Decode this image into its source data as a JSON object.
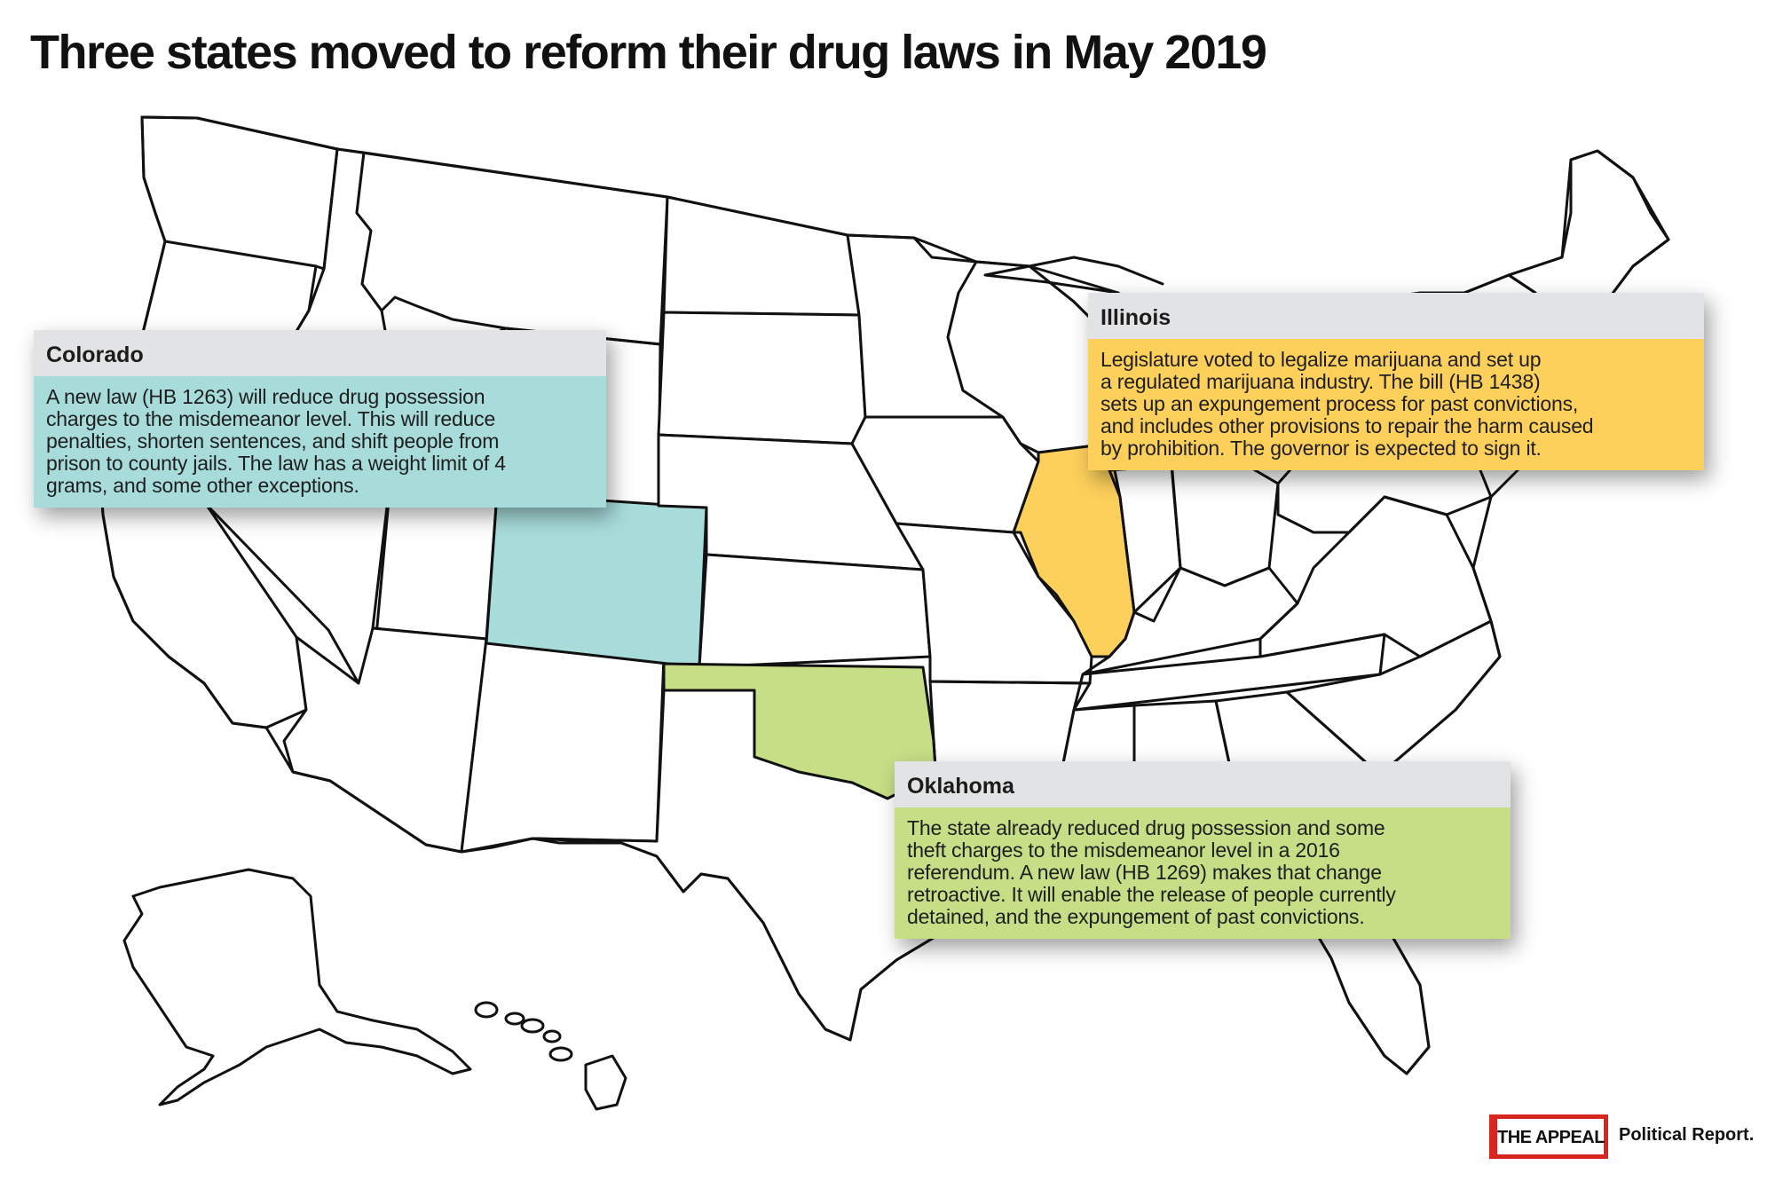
{
  "title": "Three states moved to reform their drug laws in May 2019",
  "colors": {
    "colorado": "#a8dcdb",
    "illinois": "#fdd05c",
    "oklahoma": "#c6df86",
    "state_default": "#ffffff",
    "border": "#111111",
    "card_header": "#e2e3e5",
    "logo_red": "#d7251f"
  },
  "highlighted_states": [
    {
      "name": "Colorado",
      "description_lines": [
        "A new law (HB 1263) will reduce drug possession",
        "charges to the misdemeanor level. This will reduce",
        "penalties, shorten sentences, and shift people from",
        "prison to county jails. The law has a weight limit of 4",
        "grams, and some other exceptions."
      ]
    },
    {
      "name": "Illinois",
      "description_lines": [
        "Legislature voted to legalize marijuana and set up",
        "a regulated marijuana industry. The bill (HB 1438)",
        "sets up an expungement process for past convictions,",
        "and includes other provisions to repair the harm caused",
        "by prohibition. The governor is expected to sign it."
      ]
    },
    {
      "name": "Oklahoma",
      "description_lines": [
        "The state already reduced drug possession and some",
        "theft charges to the misdemeanor level in a 2016",
        "referendum. A new law (HB 1269) makes that change",
        "retroactive. It will enable the release of people currently",
        "detained, and the expungement of past convictions."
      ]
    }
  ],
  "branding": {
    "logo_mark": "THE APPEAL",
    "logo_text": "Political Report."
  }
}
